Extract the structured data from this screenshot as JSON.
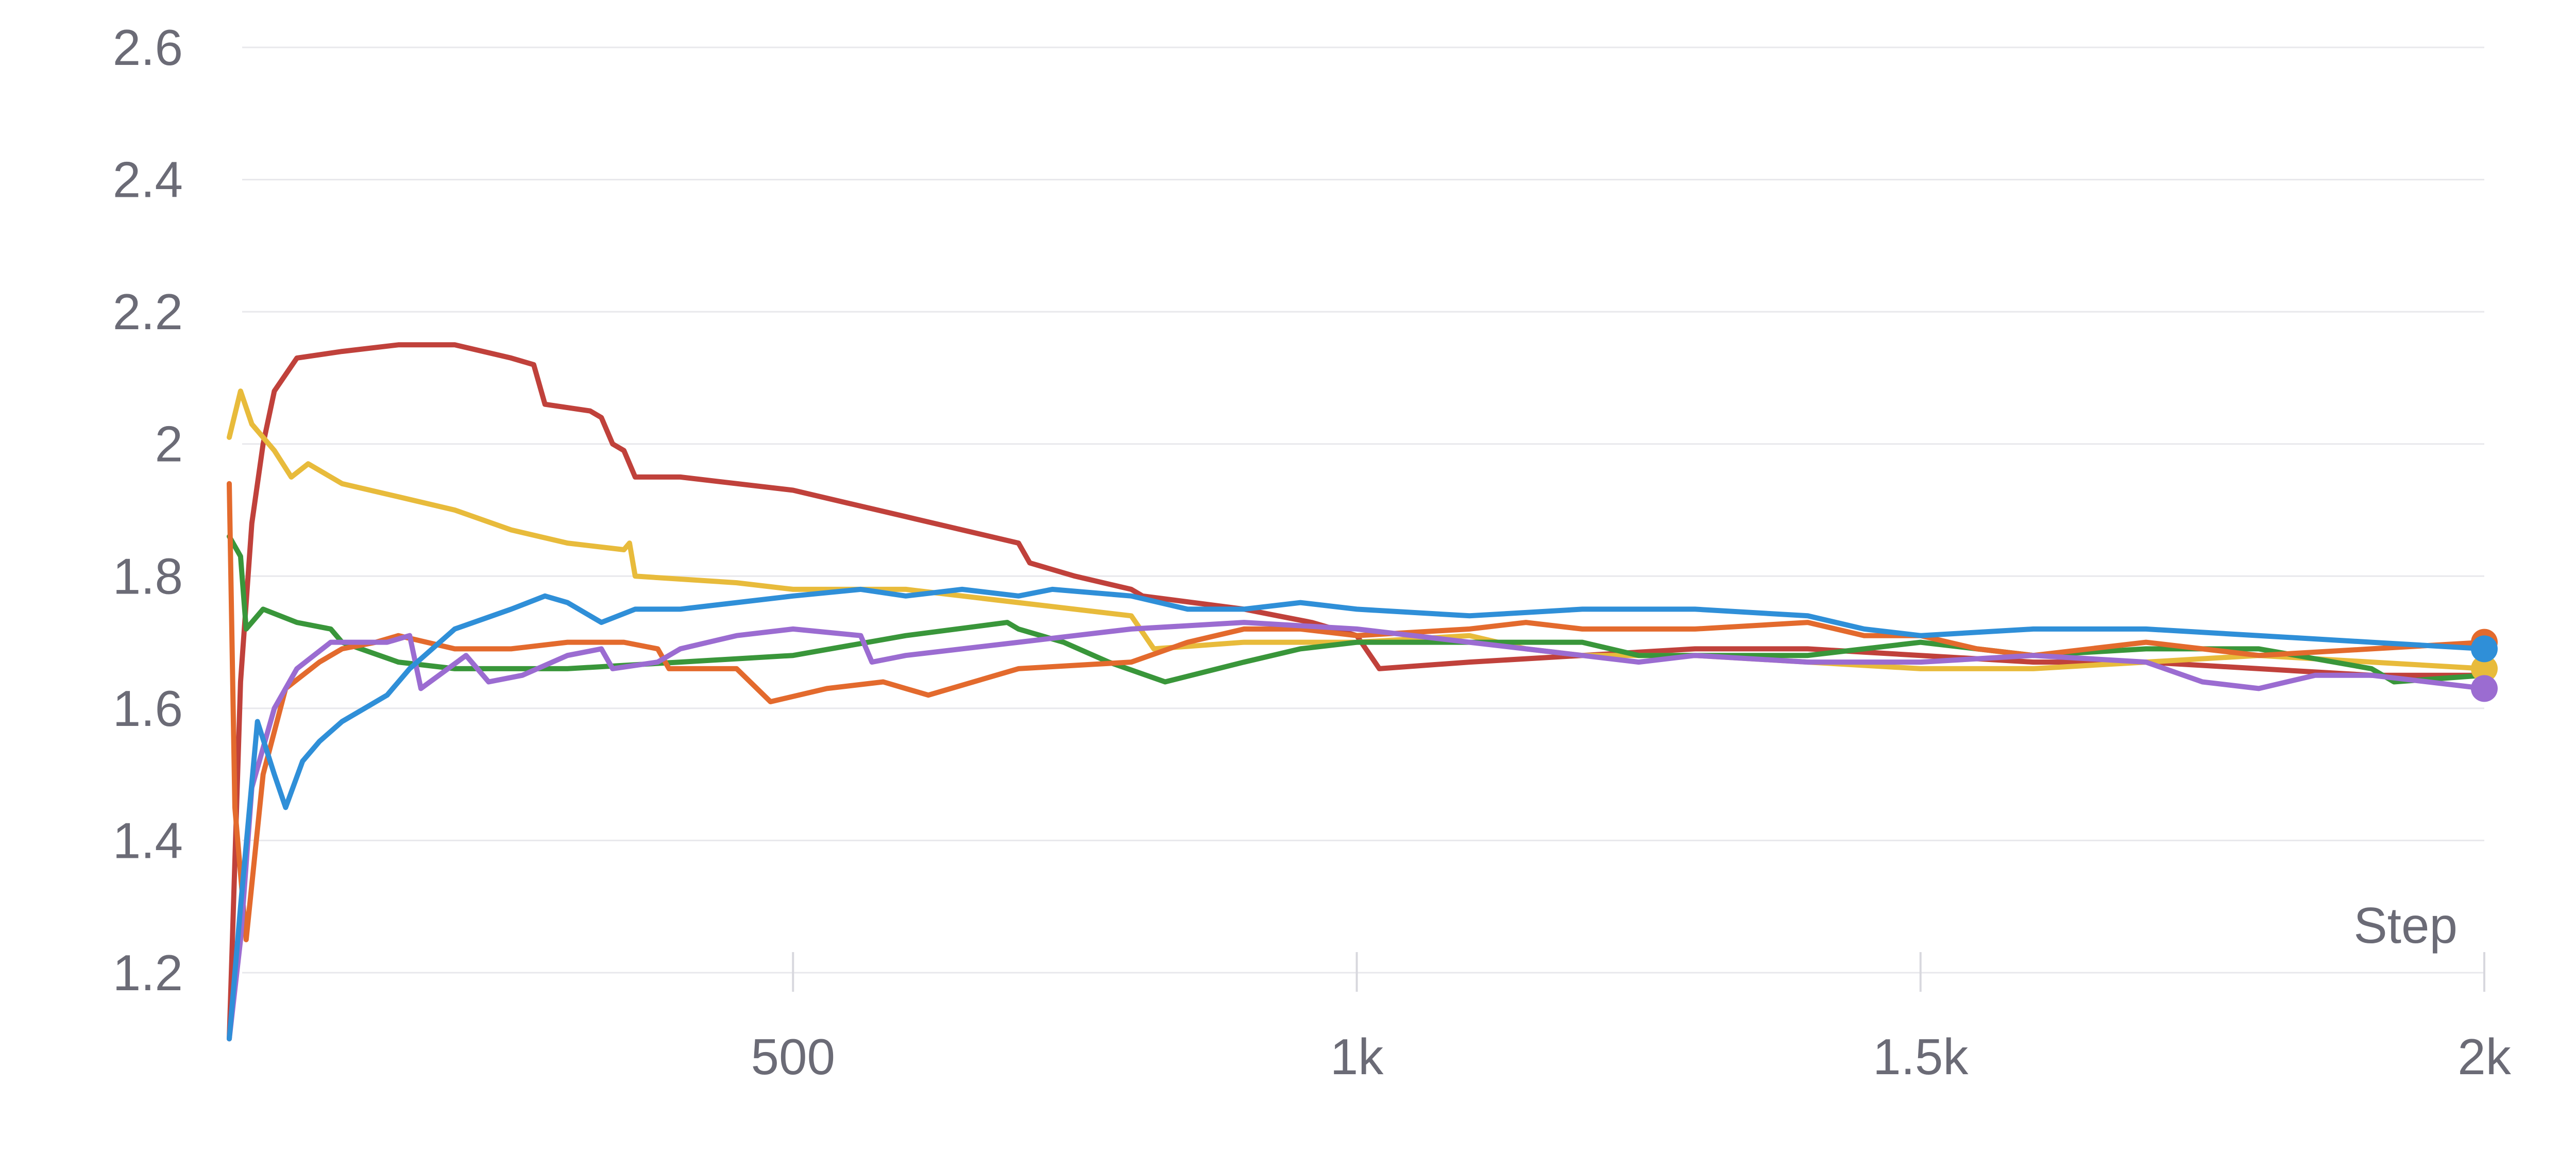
{
  "chart_data": {
    "type": "line",
    "xlabel": "Step",
    "ylabel": "",
    "xlim": [
      0,
      2000
    ],
    "ylim": [
      1.1,
      2.65
    ],
    "x_ticks": [
      {
        "value": 500,
        "label": "500"
      },
      {
        "value": 1000,
        "label": "1k"
      },
      {
        "value": 1500,
        "label": "1.5k"
      },
      {
        "value": 2000,
        "label": "2k"
      }
    ],
    "y_ticks": [
      {
        "value": 1.2,
        "label": "1.2"
      },
      {
        "value": 1.4,
        "label": "1.4"
      },
      {
        "value": 1.6,
        "label": "1.6"
      },
      {
        "value": 1.8,
        "label": "1.8"
      },
      {
        "value": 2.0,
        "label": "2"
      },
      {
        "value": 2.2,
        "label": "2.2"
      },
      {
        "value": 2.4,
        "label": "2.4"
      },
      {
        "value": 2.6,
        "label": "2.6"
      }
    ],
    "grid": true,
    "legend": "none",
    "series": [
      {
        "color": "#c0413b",
        "end_marker": false,
        "points": [
          [
            0,
            1.1
          ],
          [
            10,
            1.64
          ],
          [
            20,
            1.88
          ],
          [
            30,
            2.0
          ],
          [
            40,
            2.08
          ],
          [
            60,
            2.13
          ],
          [
            100,
            2.14
          ],
          [
            150,
            2.15
          ],
          [
            200,
            2.15
          ],
          [
            250,
            2.13
          ],
          [
            270,
            2.12
          ],
          [
            280,
            2.06
          ],
          [
            320,
            2.05
          ],
          [
            330,
            2.04
          ],
          [
            340,
            2.0
          ],
          [
            350,
            1.99
          ],
          [
            360,
            1.95
          ],
          [
            400,
            1.95
          ],
          [
            450,
            1.94
          ],
          [
            500,
            1.93
          ],
          [
            550,
            1.91
          ],
          [
            600,
            1.89
          ],
          [
            650,
            1.87
          ],
          [
            700,
            1.85
          ],
          [
            710,
            1.82
          ],
          [
            750,
            1.8
          ],
          [
            800,
            1.78
          ],
          [
            810,
            1.77
          ],
          [
            900,
            1.75
          ],
          [
            930,
            1.74
          ],
          [
            960,
            1.73
          ],
          [
            1000,
            1.71
          ],
          [
            1020,
            1.66
          ],
          [
            1100,
            1.67
          ],
          [
            1200,
            1.68
          ],
          [
            1300,
            1.69
          ],
          [
            1400,
            1.69
          ],
          [
            1500,
            1.68
          ],
          [
            1600,
            1.67
          ],
          [
            1700,
            1.67
          ],
          [
            1800,
            1.66
          ],
          [
            1900,
            1.65
          ],
          [
            2000,
            1.65
          ]
        ]
      },
      {
        "color": "#e8bb3b",
        "end_marker": true,
        "points": [
          [
            0,
            2.01
          ],
          [
            10,
            2.08
          ],
          [
            20,
            2.03
          ],
          [
            40,
            1.99
          ],
          [
            55,
            1.95
          ],
          [
            70,
            1.97
          ],
          [
            100,
            1.94
          ],
          [
            150,
            1.92
          ],
          [
            200,
            1.9
          ],
          [
            250,
            1.87
          ],
          [
            300,
            1.85
          ],
          [
            350,
            1.84
          ],
          [
            355,
            1.85
          ],
          [
            360,
            1.8
          ],
          [
            450,
            1.79
          ],
          [
            500,
            1.78
          ],
          [
            600,
            1.78
          ],
          [
            700,
            1.76
          ],
          [
            800,
            1.74
          ],
          [
            820,
            1.69
          ],
          [
            900,
            1.7
          ],
          [
            1000,
            1.7
          ],
          [
            1100,
            1.71
          ],
          [
            1150,
            1.69
          ],
          [
            1200,
            1.68
          ],
          [
            1300,
            1.68
          ],
          [
            1400,
            1.67
          ],
          [
            1500,
            1.66
          ],
          [
            1550,
            1.66
          ],
          [
            1600,
            1.66
          ],
          [
            1700,
            1.67
          ],
          [
            1800,
            1.68
          ],
          [
            1900,
            1.67
          ],
          [
            2000,
            1.66
          ]
        ]
      },
      {
        "color": "#39963a",
        "end_marker": false,
        "points": [
          [
            0,
            1.86
          ],
          [
            10,
            1.83
          ],
          [
            15,
            1.72
          ],
          [
            30,
            1.75
          ],
          [
            60,
            1.73
          ],
          [
            90,
            1.72
          ],
          [
            100,
            1.7
          ],
          [
            150,
            1.67
          ],
          [
            200,
            1.66
          ],
          [
            250,
            1.66
          ],
          [
            300,
            1.66
          ],
          [
            400,
            1.67
          ],
          [
            500,
            1.68
          ],
          [
            600,
            1.71
          ],
          [
            690,
            1.73
          ],
          [
            700,
            1.72
          ],
          [
            740,
            1.7
          ],
          [
            780,
            1.67
          ],
          [
            830,
            1.64
          ],
          [
            900,
            1.67
          ],
          [
            950,
            1.69
          ],
          [
            1000,
            1.7
          ],
          [
            1100,
            1.7
          ],
          [
            1200,
            1.7
          ],
          [
            1250,
            1.68
          ],
          [
            1300,
            1.68
          ],
          [
            1400,
            1.68
          ],
          [
            1500,
            1.7
          ],
          [
            1600,
            1.68
          ],
          [
            1700,
            1.69
          ],
          [
            1800,
            1.69
          ],
          [
            1900,
            1.66
          ],
          [
            1920,
            1.64
          ],
          [
            2000,
            1.65
          ]
        ]
      },
      {
        "color": "#e36a2d",
        "end_marker": true,
        "points": [
          [
            0,
            1.94
          ],
          [
            5,
            1.45
          ],
          [
            15,
            1.25
          ],
          [
            30,
            1.5
          ],
          [
            50,
            1.63
          ],
          [
            80,
            1.67
          ],
          [
            100,
            1.69
          ],
          [
            130,
            1.7
          ],
          [
            150,
            1.71
          ],
          [
            200,
            1.69
          ],
          [
            250,
            1.69
          ],
          [
            300,
            1.7
          ],
          [
            350,
            1.7
          ],
          [
            380,
            1.69
          ],
          [
            390,
            1.66
          ],
          [
            450,
            1.66
          ],
          [
            480,
            1.61
          ],
          [
            530,
            1.63
          ],
          [
            580,
            1.64
          ],
          [
            600,
            1.63
          ],
          [
            620,
            1.62
          ],
          [
            680,
            1.65
          ],
          [
            700,
            1.66
          ],
          [
            800,
            1.67
          ],
          [
            850,
            1.7
          ],
          [
            900,
            1.72
          ],
          [
            950,
            1.72
          ],
          [
            1000,
            1.71
          ],
          [
            1100,
            1.72
          ],
          [
            1150,
            1.73
          ],
          [
            1200,
            1.72
          ],
          [
            1300,
            1.72
          ],
          [
            1400,
            1.73
          ],
          [
            1450,
            1.71
          ],
          [
            1500,
            1.71
          ],
          [
            1550,
            1.69
          ],
          [
            1600,
            1.68
          ],
          [
            1700,
            1.7
          ],
          [
            1800,
            1.68
          ],
          [
            1900,
            1.69
          ],
          [
            2000,
            1.7
          ]
        ]
      },
      {
        "color": "#9b6cd1",
        "end_marker": true,
        "points": [
          [
            0,
            1.1
          ],
          [
            10,
            1.25
          ],
          [
            20,
            1.48
          ],
          [
            40,
            1.6
          ],
          [
            60,
            1.66
          ],
          [
            90,
            1.7
          ],
          [
            140,
            1.7
          ],
          [
            160,
            1.71
          ],
          [
            170,
            1.63
          ],
          [
            210,
            1.68
          ],
          [
            230,
            1.64
          ],
          [
            260,
            1.65
          ],
          [
            300,
            1.68
          ],
          [
            330,
            1.69
          ],
          [
            340,
            1.66
          ],
          [
            380,
            1.67
          ],
          [
            400,
            1.69
          ],
          [
            450,
            1.71
          ],
          [
            500,
            1.72
          ],
          [
            560,
            1.71
          ],
          [
            570,
            1.67
          ],
          [
            600,
            1.68
          ],
          [
            700,
            1.7
          ],
          [
            750,
            1.71
          ],
          [
            800,
            1.72
          ],
          [
            900,
            1.73
          ],
          [
            1000,
            1.72
          ],
          [
            1050,
            1.71
          ],
          [
            1100,
            1.7
          ],
          [
            1150,
            1.69
          ],
          [
            1200,
            1.68
          ],
          [
            1250,
            1.67
          ],
          [
            1300,
            1.68
          ],
          [
            1400,
            1.67
          ],
          [
            1500,
            1.67
          ],
          [
            1600,
            1.68
          ],
          [
            1700,
            1.67
          ],
          [
            1750,
            1.64
          ],
          [
            1800,
            1.63
          ],
          [
            1850,
            1.65
          ],
          [
            1900,
            1.65
          ],
          [
            2000,
            1.63
          ]
        ]
      },
      {
        "color": "#2f8fd8",
        "end_marker": true,
        "points": [
          [
            0,
            1.1
          ],
          [
            10,
            1.3
          ],
          [
            25,
            1.58
          ],
          [
            40,
            1.5
          ],
          [
            50,
            1.45
          ],
          [
            65,
            1.52
          ],
          [
            80,
            1.55
          ],
          [
            100,
            1.58
          ],
          [
            120,
            1.6
          ],
          [
            140,
            1.62
          ],
          [
            160,
            1.66
          ],
          [
            200,
            1.72
          ],
          [
            250,
            1.75
          ],
          [
            280,
            1.77
          ],
          [
            300,
            1.76
          ],
          [
            330,
            1.73
          ],
          [
            360,
            1.75
          ],
          [
            400,
            1.75
          ],
          [
            450,
            1.76
          ],
          [
            500,
            1.77
          ],
          [
            560,
            1.78
          ],
          [
            600,
            1.77
          ],
          [
            650,
            1.78
          ],
          [
            700,
            1.77
          ],
          [
            730,
            1.78
          ],
          [
            800,
            1.77
          ],
          [
            850,
            1.75
          ],
          [
            900,
            1.75
          ],
          [
            950,
            1.76
          ],
          [
            1000,
            1.75
          ],
          [
            1100,
            1.74
          ],
          [
            1200,
            1.75
          ],
          [
            1300,
            1.75
          ],
          [
            1400,
            1.74
          ],
          [
            1450,
            1.72
          ],
          [
            1500,
            1.71
          ],
          [
            1600,
            1.72
          ],
          [
            1700,
            1.72
          ],
          [
            1800,
            1.71
          ],
          [
            1900,
            1.7
          ],
          [
            2000,
            1.69
          ]
        ]
      }
    ]
  }
}
